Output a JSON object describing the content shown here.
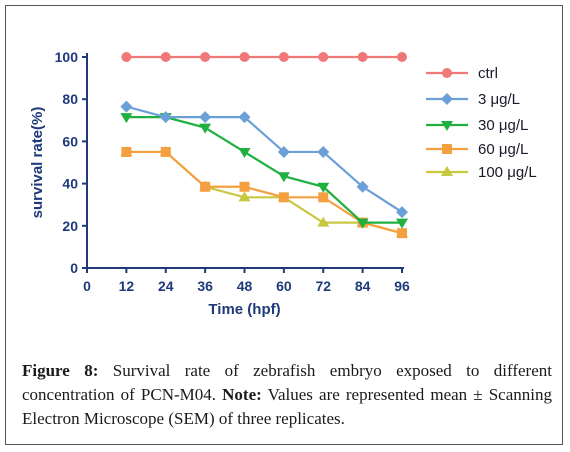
{
  "chart_data": {
    "type": "line",
    "xlabel": "Time (hpf)",
    "ylabel": "survival rate(%)",
    "x_ticks": [
      0,
      12,
      24,
      36,
      48,
      60,
      72,
      84,
      96
    ],
    "y_ticks": [
      0,
      20,
      40,
      60,
      80,
      100
    ],
    "xlim": [
      0,
      96
    ],
    "ylim": [
      0,
      100
    ],
    "grid": false,
    "legend_position": "right",
    "x": [
      12,
      24,
      36,
      48,
      60,
      72,
      84,
      96
    ],
    "series": [
      {
        "name": "ctrl",
        "color": "#f07878",
        "marker": "circle",
        "values": [
          100,
          100,
          100,
          100,
          100,
          100,
          100,
          100
        ]
      },
      {
        "name": "3 μg/L",
        "color": "#6a9fd8",
        "marker": "diamond",
        "values": [
          76.5,
          71.5,
          71.5,
          71.5,
          55,
          55,
          38.5,
          26.5
        ]
      },
      {
        "name": "30 μg/L",
        "color": "#20b040",
        "marker": "triangle-down",
        "values": [
          71.5,
          71.5,
          66.5,
          55,
          43.5,
          38.5,
          21.5,
          21.5
        ]
      },
      {
        "name": "60 μg/L",
        "color": "#f5a040",
        "marker": "square",
        "values": [
          55,
          55,
          38.5,
          38.5,
          33.5,
          33.5,
          21.5,
          16.5
        ]
      },
      {
        "name": "100 μg/L",
        "color": "#c8c840",
        "marker": "triangle-up",
        "values": [
          55,
          55,
          38.5,
          33.5,
          33.5,
          21.5,
          21.5,
          16.5
        ]
      }
    ]
  },
  "caption": {
    "figure_label": "Figure 8:",
    "text1": " Survival rate of zebrafish embryo exposed to different concentration of PCN-M04. ",
    "note_label": "Note:",
    "text2": " Values are represented mean ± Scanning Electron Microscope (SEM) of three replicates."
  },
  "colors": {
    "axis": "#1f3a7a",
    "frame": "#555555"
  }
}
